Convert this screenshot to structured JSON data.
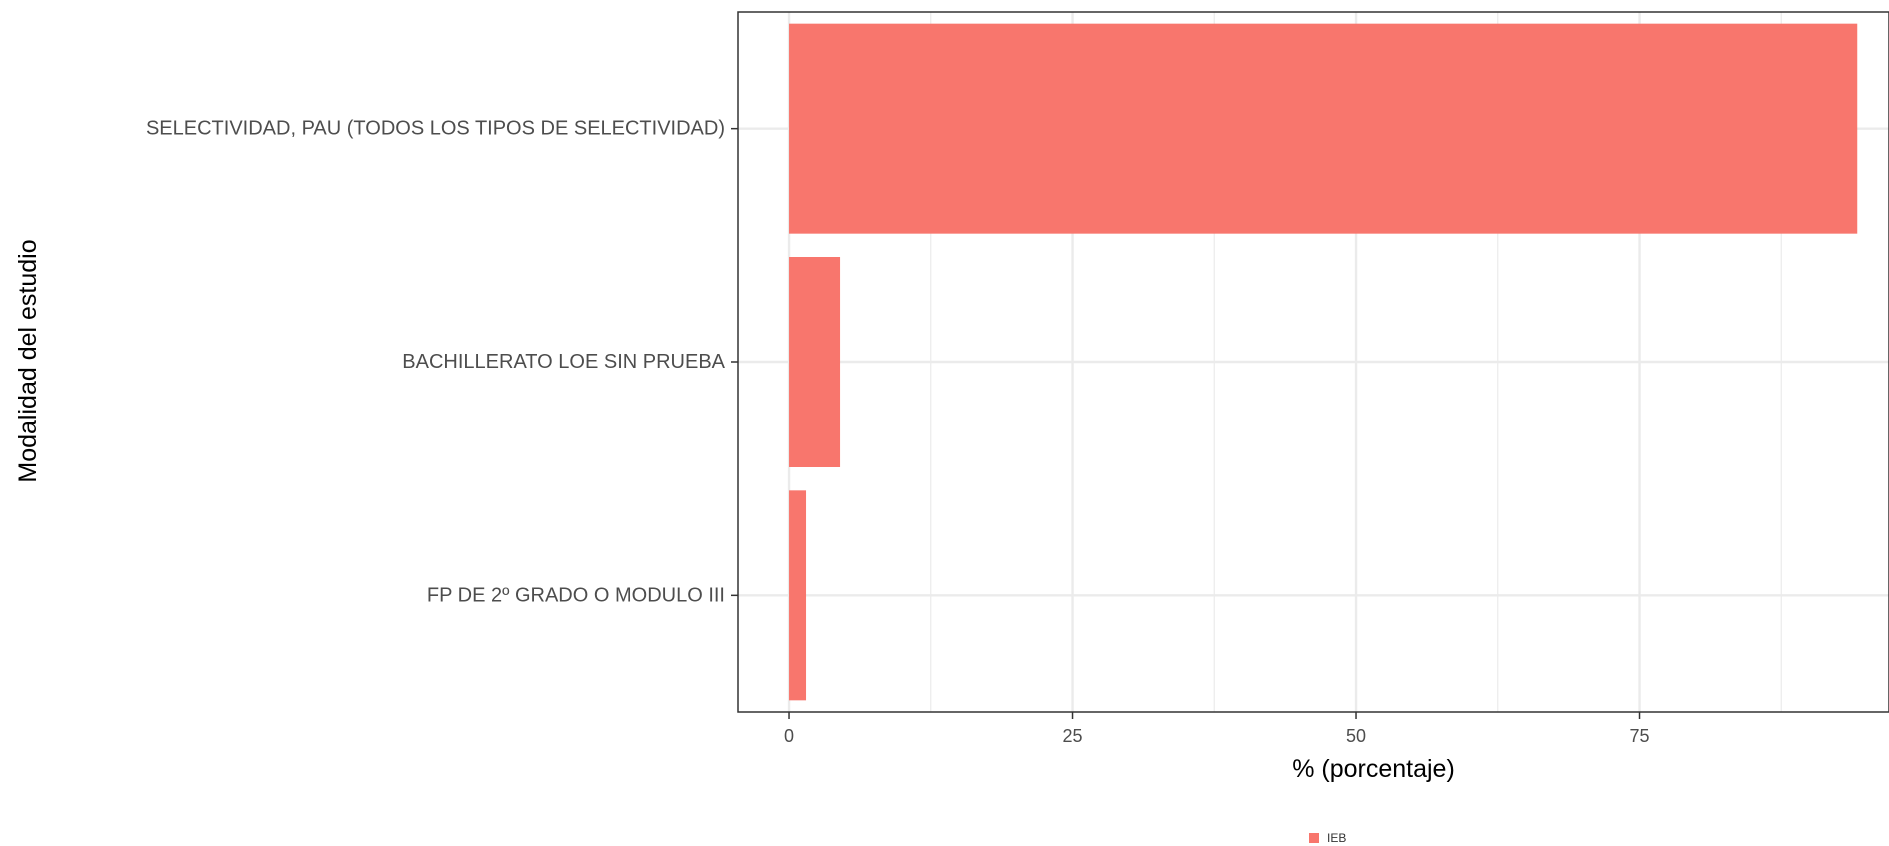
{
  "chart_data": {
    "type": "bar",
    "orientation": "horizontal",
    "categories": [
      "SELECTIVIDAD, PAU (TODOS LOS TIPOS DE SELECTIVIDAD)",
      "BACHILLERATO LOE SIN PRUEBA",
      "FP DE 2º GRADO O MODULO III"
    ],
    "series": [
      {
        "name": "IEB",
        "values": [
          94.2,
          4.5,
          1.5
        ]
      }
    ],
    "xlabel": "% (porcentaje)",
    "ylabel": "Modalidad del estudio",
    "xlim": [
      -4.5,
      97
    ],
    "xticks": [
      "0",
      "25",
      "50",
      "75"
    ],
    "grid": true,
    "legend_position": "bottom",
    "colors": {
      "bar": "#F8766D",
      "grid": "#ebebeb",
      "panel_border": "#333333"
    }
  }
}
